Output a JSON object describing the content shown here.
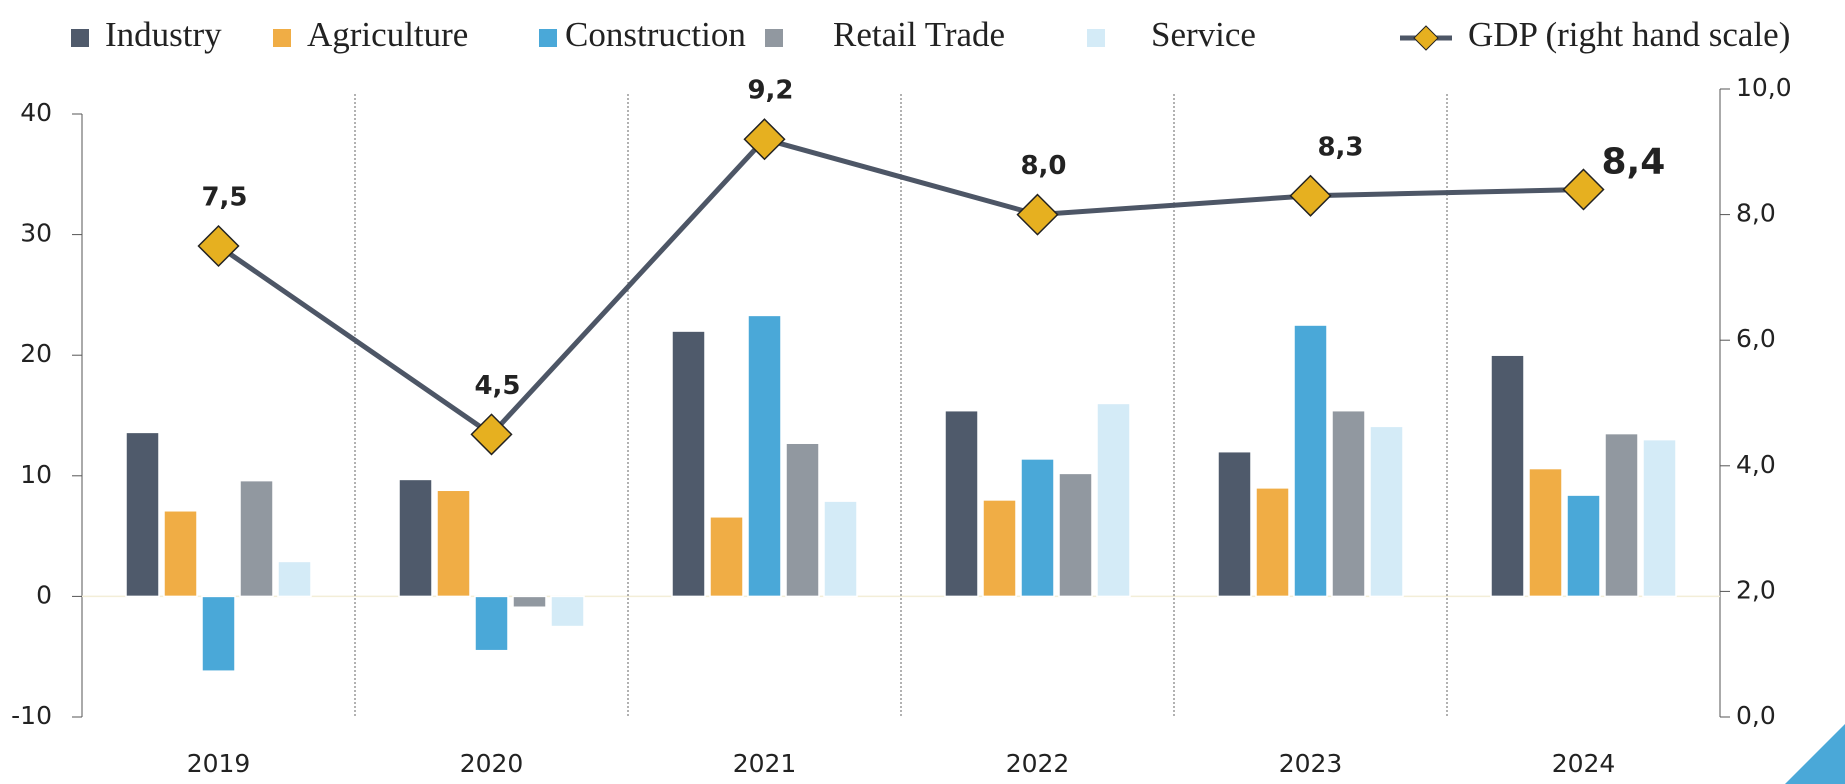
{
  "chart_data": {
    "type": "bar",
    "categories": [
      "2019",
      "2020",
      "2021",
      "2022",
      "2023",
      "2024"
    ],
    "series": [
      {
        "name": "Industry",
        "color": "#4f5a6b",
        "values": [
          13.6,
          9.7,
          22.0,
          15.4,
          12.0,
          20.0
        ]
      },
      {
        "name": "Agriculture",
        "color": "#f0ad45",
        "values": [
          7.1,
          8.8,
          6.6,
          8.0,
          9.0,
          10.6
        ]
      },
      {
        "name": "Construction",
        "color": "#4aa8d8",
        "values": [
          -6.2,
          -4.5,
          23.3,
          11.4,
          22.5,
          8.4
        ]
      },
      {
        "name": "Retail Trade",
        "color": "#9198a0",
        "values": [
          9.6,
          -0.9,
          12.7,
          10.2,
          15.4,
          13.5
        ]
      },
      {
        "name": "Service",
        "color": "#d4ebf7",
        "values": [
          2.9,
          -2.5,
          7.9,
          16.0,
          14.1,
          13.0
        ]
      },
      {
        "name": "GDP (right hand scale)",
        "type": "line",
        "axis": "y2",
        "color": "#4d5666",
        "marker_color": "#e6b020",
        "values": [
          7.5,
          4.5,
          9.2,
          8.0,
          8.3,
          8.4
        ],
        "value_labels": [
          "7,5",
          "4,5",
          "9,2",
          "8,0",
          "8,3",
          "8,4"
        ],
        "value_label_colors": [
          "#2a3040",
          "#2a3040",
          "#2a3040",
          "#2a3040",
          "#2a3040",
          "#c00000"
        ]
      }
    ],
    "ylim": [
      -10,
      40
    ],
    "yticks": [
      -10,
      0,
      10,
      20,
      30,
      40
    ],
    "y2lim": [
      0,
      10
    ],
    "y2ticks": [
      {
        "value": 0,
        "label": "0,0"
      },
      {
        "value": 2,
        "label": "2,0"
      },
      {
        "value": 4,
        "label": "4,0"
      },
      {
        "value": 6,
        "label": "6,0"
      },
      {
        "value": 8,
        "label": "8,0"
      },
      {
        "value": 10,
        "label": "10,0"
      }
    ],
    "legend": "top"
  }
}
